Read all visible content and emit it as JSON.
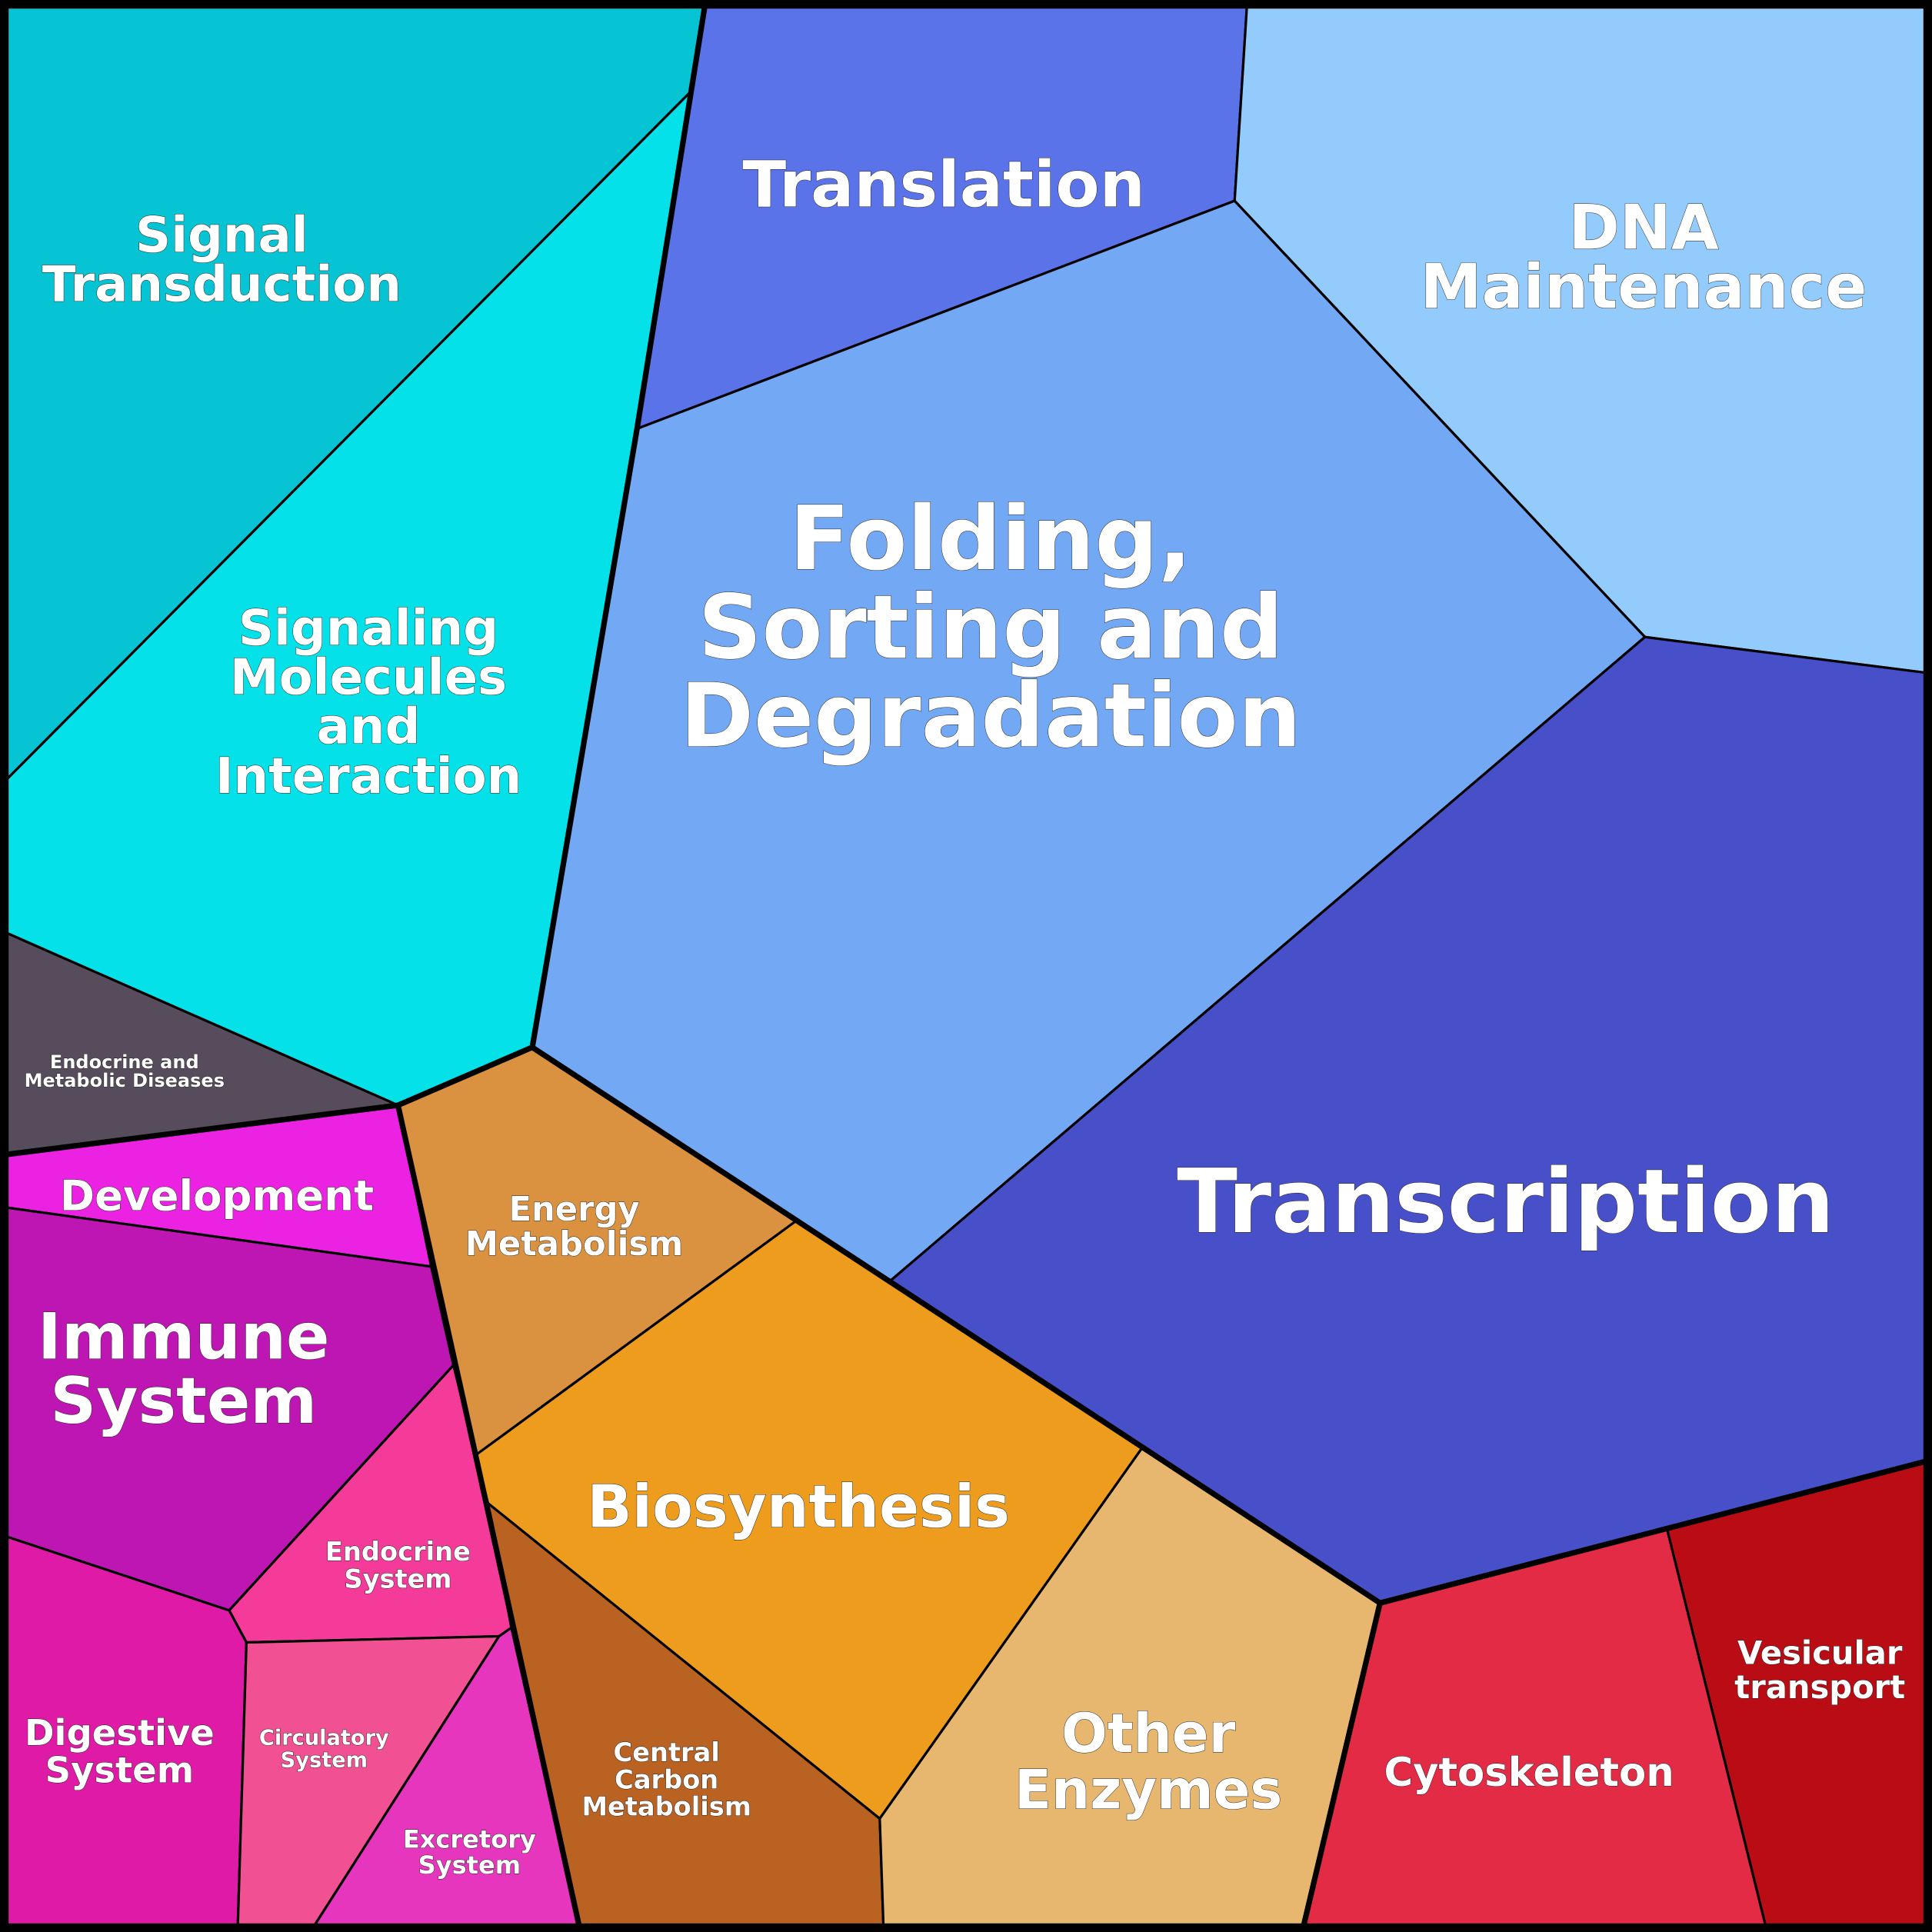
{
  "diagram": {
    "type": "voronoi-treemap",
    "cells": [
      {
        "id": "signal-transduction",
        "label": [
          "Signal",
          "Transduction"
        ],
        "color": "#06C4D4",
        "group": "environmental"
      },
      {
        "id": "signaling-molecules",
        "label": [
          "Signaling",
          "Molecules",
          "and",
          "Interaction"
        ],
        "color": "#04E1E9",
        "group": "environmental"
      },
      {
        "id": "translation",
        "label": [
          "Translation"
        ],
        "color": "#5A73E8",
        "group": "genetic"
      },
      {
        "id": "dna-maintenance",
        "label": [
          "DNA",
          "Maintenance"
        ],
        "color": "#93CCFC",
        "group": "genetic"
      },
      {
        "id": "folding",
        "label": [
          "Folding,",
          "Sorting and",
          "Degradation"
        ],
        "color": "#73A8F4",
        "group": "genetic"
      },
      {
        "id": "transcription",
        "label": [
          "Transcription"
        ],
        "color": "#4850C9",
        "group": "genetic"
      },
      {
        "id": "endocrine-metabolic-diseases",
        "label": [
          "Endocrine and",
          "Metabolic Diseases"
        ],
        "color": "#574C5C",
        "group": "disease"
      },
      {
        "id": "development",
        "label": [
          "Development"
        ],
        "color": "#EC22E2",
        "group": "organismal"
      },
      {
        "id": "immune-system",
        "label": [
          "Immune",
          "System"
        ],
        "color": "#BD16B2",
        "group": "organismal"
      },
      {
        "id": "energy-metabolism",
        "label": [
          "Energy",
          "Metabolism"
        ],
        "color": "#DA9140",
        "group": "metabolism"
      },
      {
        "id": "biosynthesis",
        "label": [
          "Biosynthesis"
        ],
        "color": "#EE9C1E",
        "group": "metabolism"
      },
      {
        "id": "endocrine-system",
        "label": [
          "Endocrine",
          "System"
        ],
        "color": "#F53B9A",
        "group": "organismal"
      },
      {
        "id": "digestive-system",
        "label": [
          "Digestive",
          "System"
        ],
        "color": "#DF1AA6",
        "group": "organismal"
      },
      {
        "id": "circulatory-system",
        "label": [
          "Circulatory",
          "System"
        ],
        "color": "#F15092",
        "group": "organismal"
      },
      {
        "id": "excretory-system",
        "label": [
          "Excretory",
          "System"
        ],
        "color": "#E536BD",
        "group": "organismal"
      },
      {
        "id": "central-carbon-metabolism",
        "label": [
          "Central",
          "Carbon",
          "Metabolism"
        ],
        "color": "#BA6222",
        "group": "metabolism"
      },
      {
        "id": "other-enzymes",
        "label": [
          "Other",
          "Enzymes"
        ],
        "color": "#E8B76F",
        "group": "metabolism"
      },
      {
        "id": "cytoskeleton",
        "label": [
          "Cytoskeleton"
        ],
        "color": "#E42B46",
        "group": "cellular"
      },
      {
        "id": "vesicular-transport",
        "label": [
          "Vesicular",
          "transport"
        ],
        "color": "#BA0C14",
        "group": "cellular"
      }
    ]
  }
}
